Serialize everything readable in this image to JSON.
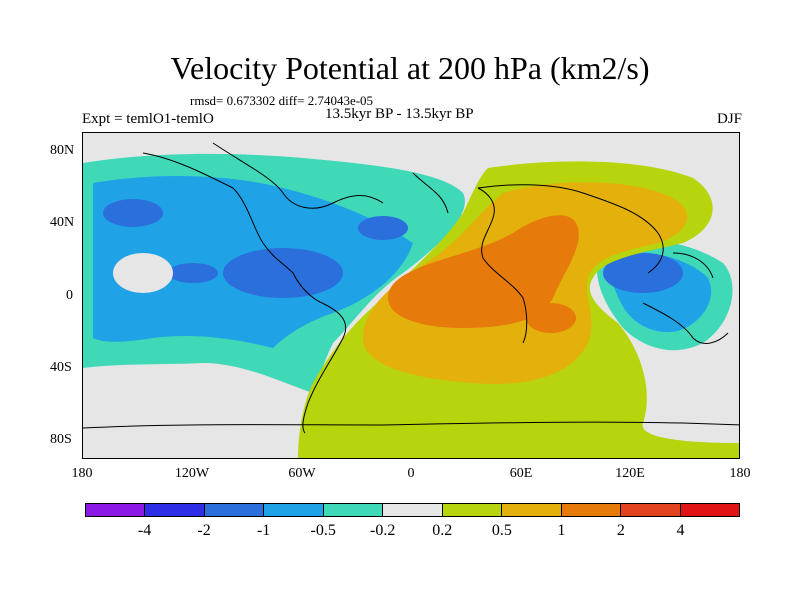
{
  "title": "Velocity Potential at 200 hPa (km2/s)",
  "stats": "rmsd= 0.673302 diff= 2.74043e-05",
  "period": "13.5kyr BP - 13.5kyr BP",
  "experiment": "Expt = temlO1-temlO",
  "season": "DJF",
  "map": {
    "y_ticks": [
      "80N",
      "40N",
      "0",
      "40S",
      "80S"
    ],
    "x_ticks": [
      "180",
      "120W",
      "60W",
      "0",
      "60E",
      "120E",
      "180"
    ]
  },
  "colorbar": {
    "colors": [
      "#8c1ae6",
      "#2e2ee6",
      "#2a6fdb",
      "#1fa3e6",
      "#3fd9b8",
      "#e6e6e6",
      "#b8d40d",
      "#e3b00c",
      "#e67a0a",
      "#e3431c",
      "#e01414"
    ],
    "labels": [
      "-4",
      "-2",
      "-1",
      "-0.5",
      "-0.2",
      "0.2",
      "0.5",
      "1",
      "2",
      "4"
    ]
  }
}
